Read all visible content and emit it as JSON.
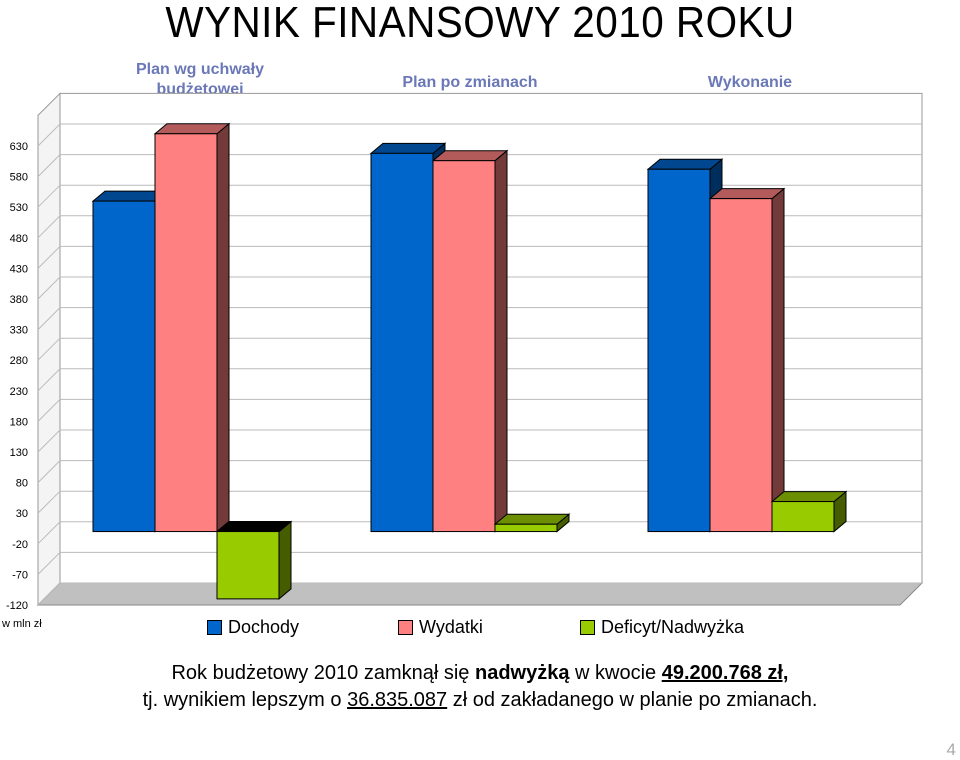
{
  "title": "WYNIK FINANSOWY 2010 ROKU",
  "unit_label": "w mln zł",
  "colors": {
    "dochody": "#0066cc",
    "wydatki": "#ff8080",
    "nadwyzka": "#99cc00"
  },
  "chart_data": {
    "type": "bar",
    "categories": [
      "Plan wg uchwały budżetowej",
      "Plan po zmianach",
      "Wykonanie"
    ],
    "category_lines": [
      [
        "Plan wg uchwały",
        "budżetowej"
      ],
      [
        "Plan po zmianach"
      ],
      [
        "Wykonanie"
      ]
    ],
    "series": [
      {
        "name": "Dochody",
        "values": [
          540,
          618,
          592
        ]
      },
      {
        "name": "Wydatki",
        "values": [
          650,
          606,
          544
        ]
      },
      {
        "name": "Deficyt/Nadwyżka",
        "values": [
          -110,
          12,
          49
        ]
      }
    ],
    "yticks": [
      630,
      580,
      530,
      480,
      430,
      380,
      330,
      280,
      230,
      180,
      130,
      80,
      30,
      -20,
      -70,
      -120
    ],
    "ylim": [
      -120,
      680
    ],
    "grid": true,
    "legend": "bottom"
  },
  "summary": {
    "line1_pre": "Rok budżetowy 2010 zamknął się ",
    "line1_bold": "nadwyżką",
    "line1_mid": " w kwocie ",
    "line1_amount": "49.200.768 zł,",
    "line2_pre": "tj. wynikiem lepszym o ",
    "line2_amount": "36.835.087",
    "line2_post": " zł od zakładanego w planie po zmianach."
  },
  "page_number": "4"
}
